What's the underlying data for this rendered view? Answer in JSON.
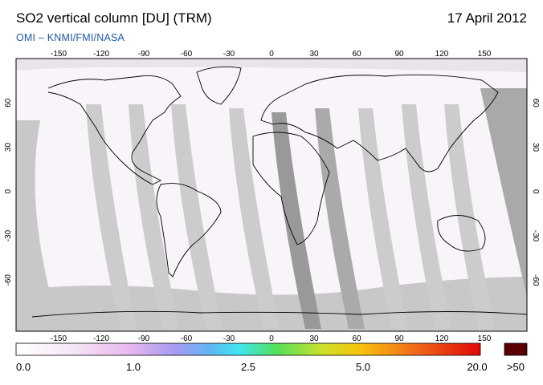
{
  "title": "SO2 vertical column [DU] (TRM)",
  "date": "17 April 2012",
  "credit": "OMI  –  KNMI/FMI/NASA",
  "map": {
    "longitude_ticks": [
      "-150",
      "-120",
      "-90",
      "-60",
      "-30",
      "0",
      "30",
      "60",
      "90",
      "120",
      "150"
    ],
    "latitude_ticks": [
      "60",
      "30",
      "0",
      "-30",
      "-60"
    ],
    "projection": "plate-carree",
    "no_data_color": "#c8c8c8"
  },
  "colorbar": {
    "tick_labels": [
      "0.0",
      "1.0",
      "2.5",
      "5.0",
      "20.0",
      ">50"
    ],
    "colors": [
      "#ffffff",
      "#f6e4f6",
      "#e7b8ec",
      "#a79af0",
      "#3fe0f4",
      "#54e05a",
      "#cfe02e",
      "#f7c00c",
      "#f0601a",
      "#e00a0a",
      "#5a0000"
    ]
  }
}
